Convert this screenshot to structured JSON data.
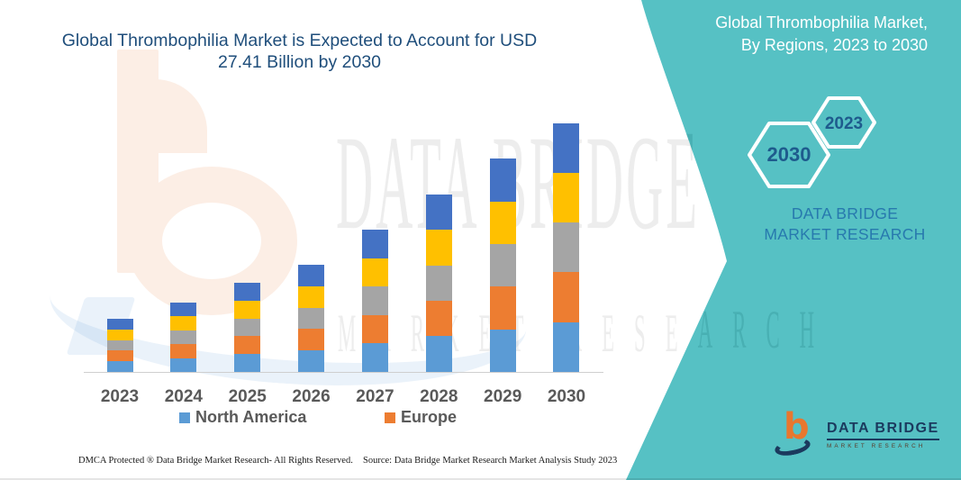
{
  "page": {
    "chart_title": "Global Thrombophilia Market is Expected to Account for USD 27.41 Billion by 2030",
    "footer_left": "DMCA Protected ® Data Bridge Market Research-  All Rights Reserved.",
    "footer_source": "Source: Data Bridge Market Research  Market Analysis Study 2023"
  },
  "side_panel": {
    "heading": "Global Thrombophilia Market, By Regions, 2023 to 2030",
    "hexagon_years": [
      "2030",
      "2023"
    ],
    "brand_text": "DATA BRIDGE MARKET RESEARCH",
    "accent_teal": "#56C1C4",
    "brand_blue": "#2779AE",
    "hexagon_year_color": "#1E5B8D"
  },
  "logo": {
    "name": "DATA BRIDGE",
    "subtitle": "MARKET RESEARCH"
  },
  "watermarks": {
    "line1": "DATA BRIDGE",
    "line2": "MARKET RESEARCH"
  },
  "legend": [
    {
      "label": "North America",
      "color": "#5B9BD5"
    },
    {
      "label": "Europe",
      "color": "#ED7D31"
    }
  ],
  "chart_data": {
    "type": "bar",
    "stacked": true,
    "title": "Global Thrombophilia Market is Expected to Account for USD 27.41 Billion by 2030",
    "categories": [
      "2023",
      "2024",
      "2025",
      "2026",
      "2027",
      "2028",
      "2029",
      "2030"
    ],
    "totals_usd_billion": [
      5.85,
      7.65,
      9.8,
      11.8,
      15.65,
      19.55,
      23.45,
      27.41
    ],
    "series": [
      {
        "name": "North America",
        "color": "#5B9BD5",
        "values": [
          1.17,
          1.53,
          1.96,
          2.36,
          3.13,
          3.91,
          4.69,
          5.48
        ]
      },
      {
        "name": "Europe",
        "color": "#ED7D31",
        "values": [
          1.17,
          1.53,
          1.96,
          2.36,
          3.13,
          3.91,
          4.69,
          5.48
        ]
      },
      {
        "name": "",
        "color": "#A5A5A5",
        "values": [
          1.17,
          1.53,
          1.96,
          2.36,
          3.13,
          3.91,
          4.69,
          5.48
        ]
      },
      {
        "name": "",
        "color": "#FFC000",
        "values": [
          1.17,
          1.53,
          1.96,
          2.36,
          3.13,
          3.91,
          4.69,
          5.48
        ]
      },
      {
        "name": "",
        "color": "#4472C4",
        "values": [
          1.17,
          1.53,
          1.96,
          2.36,
          3.13,
          3.91,
          4.69,
          5.48
        ]
      }
    ],
    "xlabel": "",
    "ylabel": "",
    "ylim": [
      0,
      30
    ],
    "grid": false,
    "y_axis_visible": false,
    "legend_position": "bottom"
  }
}
